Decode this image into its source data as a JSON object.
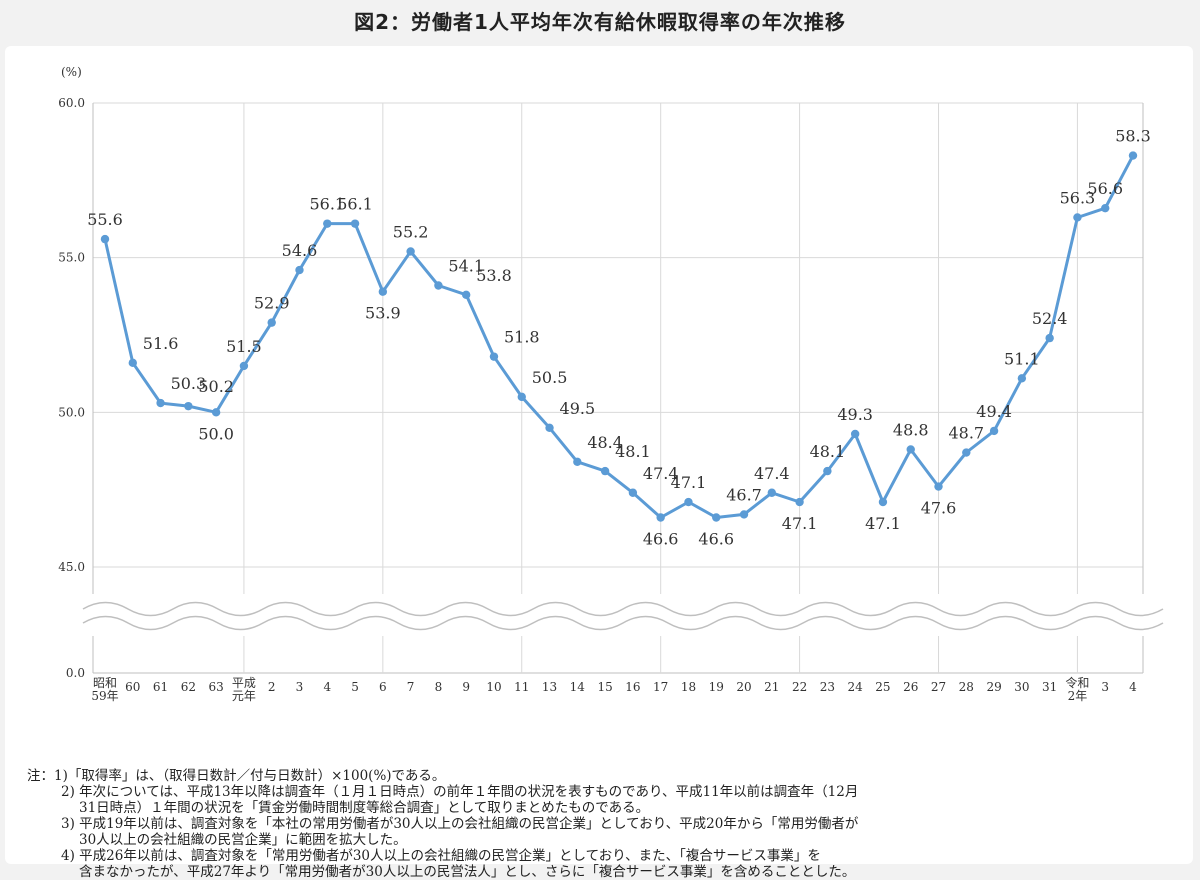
{
  "header": {
    "title": "図2：労働者1人平均年次有給休暇取得率の年次推移"
  },
  "chart_data": {
    "type": "line",
    "title": "図2：労働者1人平均年次有給休暇取得率の年次推移",
    "unit_label": "(%)",
    "y_ticks": [
      "60.0",
      "55.0",
      "50.0",
      "45.0",
      "0.0"
    ],
    "ylim": [
      45,
      60
    ],
    "y_axis_break": true,
    "grid": true,
    "line_color": "#5b9bd5",
    "categories": [
      "昭和59年",
      "60",
      "61",
      "62",
      "63",
      "平成元年",
      "2",
      "3",
      "4",
      "5",
      "6",
      "7",
      "8",
      "9",
      "10",
      "11",
      "13",
      "14",
      "15",
      "16",
      "17",
      "18",
      "19",
      "20",
      "21",
      "22",
      "23",
      "24",
      "25",
      "26",
      "27",
      "28",
      "29",
      "30",
      "31",
      "令和2年",
      "3",
      "4"
    ],
    "x_tick_labels": [
      [
        "昭和",
        "59年"
      ],
      [
        "60"
      ],
      [
        "61"
      ],
      [
        "62"
      ],
      [
        "63"
      ],
      [
        "平成",
        "元年"
      ],
      [
        "2"
      ],
      [
        "3"
      ],
      [
        "4"
      ],
      [
        "5"
      ],
      [
        "6"
      ],
      [
        "7"
      ],
      [
        "8"
      ],
      [
        "9"
      ],
      [
        "10"
      ],
      [
        "11"
      ],
      [
        "13"
      ],
      [
        "14"
      ],
      [
        "15"
      ],
      [
        "16"
      ],
      [
        "17"
      ],
      [
        "18"
      ],
      [
        "19"
      ],
      [
        "20"
      ],
      [
        "21"
      ],
      [
        "22"
      ],
      [
        "23"
      ],
      [
        "24"
      ],
      [
        "25"
      ],
      [
        "26"
      ],
      [
        "27"
      ],
      [
        "28"
      ],
      [
        "29"
      ],
      [
        "30"
      ],
      [
        "31"
      ],
      [
        "令和",
        "2年"
      ],
      [
        "3"
      ],
      [
        "4"
      ]
    ],
    "series": [
      {
        "values": [
          55.6,
          51.6,
          50.3,
          50.2,
          50.0,
          51.5,
          52.9,
          54.6,
          56.1,
          56.1,
          53.9,
          55.2,
          54.1,
          53.8,
          51.8,
          50.5,
          49.5,
          48.4,
          48.1,
          47.4,
          46.6,
          47.1,
          46.6,
          46.7,
          47.4,
          47.1,
          48.1,
          49.3,
          47.1,
          48.8,
          47.6,
          48.7,
          49.4,
          51.1,
          52.4,
          56.3,
          56.6,
          58.3
        ],
        "data_labels": [
          "55.6",
          "51.6",
          "50.3",
          "50.2",
          "50.0",
          "51.5",
          "52.9",
          "54.6",
          "56.1",
          "56.1",
          "53.9",
          "55.2",
          "54.1",
          "53.8",
          "51.8",
          "50.5",
          "49.5",
          "48.4",
          "48.1",
          "47.4",
          "46.6",
          "47.1",
          "46.6",
          "46.7",
          "47.4",
          "47.1",
          "48.1",
          "49.3",
          "47.1",
          "48.8",
          "47.6",
          "48.7",
          "49.4",
          "51.1",
          "52.4",
          "56.3",
          "56.6",
          "58.3"
        ]
      }
    ]
  },
  "notes": {
    "lines": [
      "注：1)「取得率」は、（取得日数計／付与日数計）×100(%)である。",
      "2) 年次については、平成13年以降は調査年（１月１日時点）の前年１年間の状況を表すものであり、平成11年以前は調査年（12月",
      "31日時点）１年間の状況を「賃金労働時間制度等総合調査」として取りまとめたものである。",
      "3) 平成19年以前は、調査対象を「本社の常用労働者が30人以上の会社組織の民営企業」としており、平成20年から「常用労働者が",
      "30人以上の会社組織の民営企業」に範囲を拡大した。",
      "4) 平成26年以前は、調査対象を「常用労働者が30人以上の会社組織の民営企業」としており、また、「複合サービス事業」を",
      "含まなかったが、平成27年より「常用労働者が30人以上の民営法人」とし、さらに「複合サービス事業」を含めることとした。"
    ]
  }
}
